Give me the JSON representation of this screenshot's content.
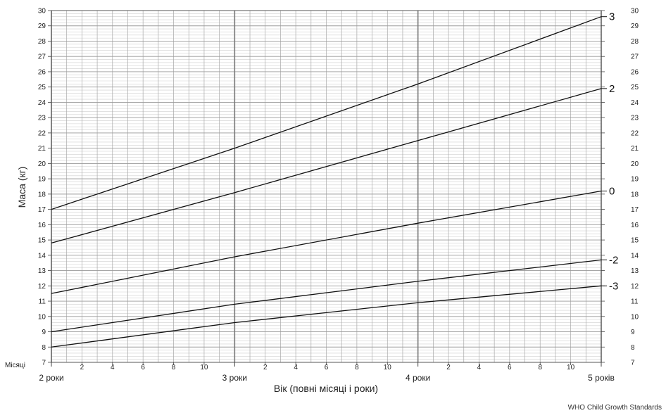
{
  "chart_data": {
    "type": "line",
    "ylabel": "Маса (кг)",
    "xlabel": "Вік (повні місяці і роки)",
    "months_label": "Місяці",
    "source": "WHO Child Growth Standards",
    "x_unit": "months",
    "xlim": [
      24,
      60
    ],
    "ylim": [
      7,
      30
    ],
    "y_ticks": [
      7,
      8,
      9,
      10,
      11,
      12,
      13,
      14,
      15,
      16,
      17,
      18,
      19,
      20,
      21,
      22,
      23,
      24,
      25,
      26,
      27,
      28,
      29,
      30
    ],
    "x_month_ticks": [
      {
        "x": 26,
        "label": "2"
      },
      {
        "x": 28,
        "label": "4"
      },
      {
        "x": 30,
        "label": "6"
      },
      {
        "x": 32,
        "label": "8"
      },
      {
        "x": 34,
        "label": "10"
      },
      {
        "x": 38,
        "label": "2"
      },
      {
        "x": 40,
        "label": "4"
      },
      {
        "x": 42,
        "label": "6"
      },
      {
        "x": 44,
        "label": "8"
      },
      {
        "x": 46,
        "label": "10"
      },
      {
        "x": 50,
        "label": "2"
      },
      {
        "x": 52,
        "label": "4"
      },
      {
        "x": 54,
        "label": "6"
      },
      {
        "x": 56,
        "label": "8"
      },
      {
        "x": 58,
        "label": "10"
      }
    ],
    "x_year_ticks": [
      {
        "x": 24,
        "label": "2 роки"
      },
      {
        "x": 36,
        "label": "3 роки"
      },
      {
        "x": 48,
        "label": "4 роки"
      },
      {
        "x": 60,
        "label": "5 років"
      }
    ],
    "grid": true,
    "series": [
      {
        "name": "3",
        "x": [
          24,
          36,
          48,
          60
        ],
        "values": [
          17.0,
          21.0,
          25.2,
          29.6
        ]
      },
      {
        "name": "2",
        "x": [
          24,
          36,
          48,
          60
        ],
        "values": [
          14.8,
          18.1,
          21.5,
          24.9
        ]
      },
      {
        "name": "0",
        "x": [
          24,
          36,
          48,
          60
        ],
        "values": [
          11.5,
          13.9,
          16.1,
          18.2
        ]
      },
      {
        "name": "-2",
        "x": [
          24,
          36,
          48,
          60
        ],
        "values": [
          9.0,
          10.8,
          12.3,
          13.7
        ]
      },
      {
        "name": "-3",
        "x": [
          24,
          36,
          48,
          60
        ],
        "values": [
          8.0,
          9.6,
          10.9,
          12.0
        ]
      }
    ]
  }
}
